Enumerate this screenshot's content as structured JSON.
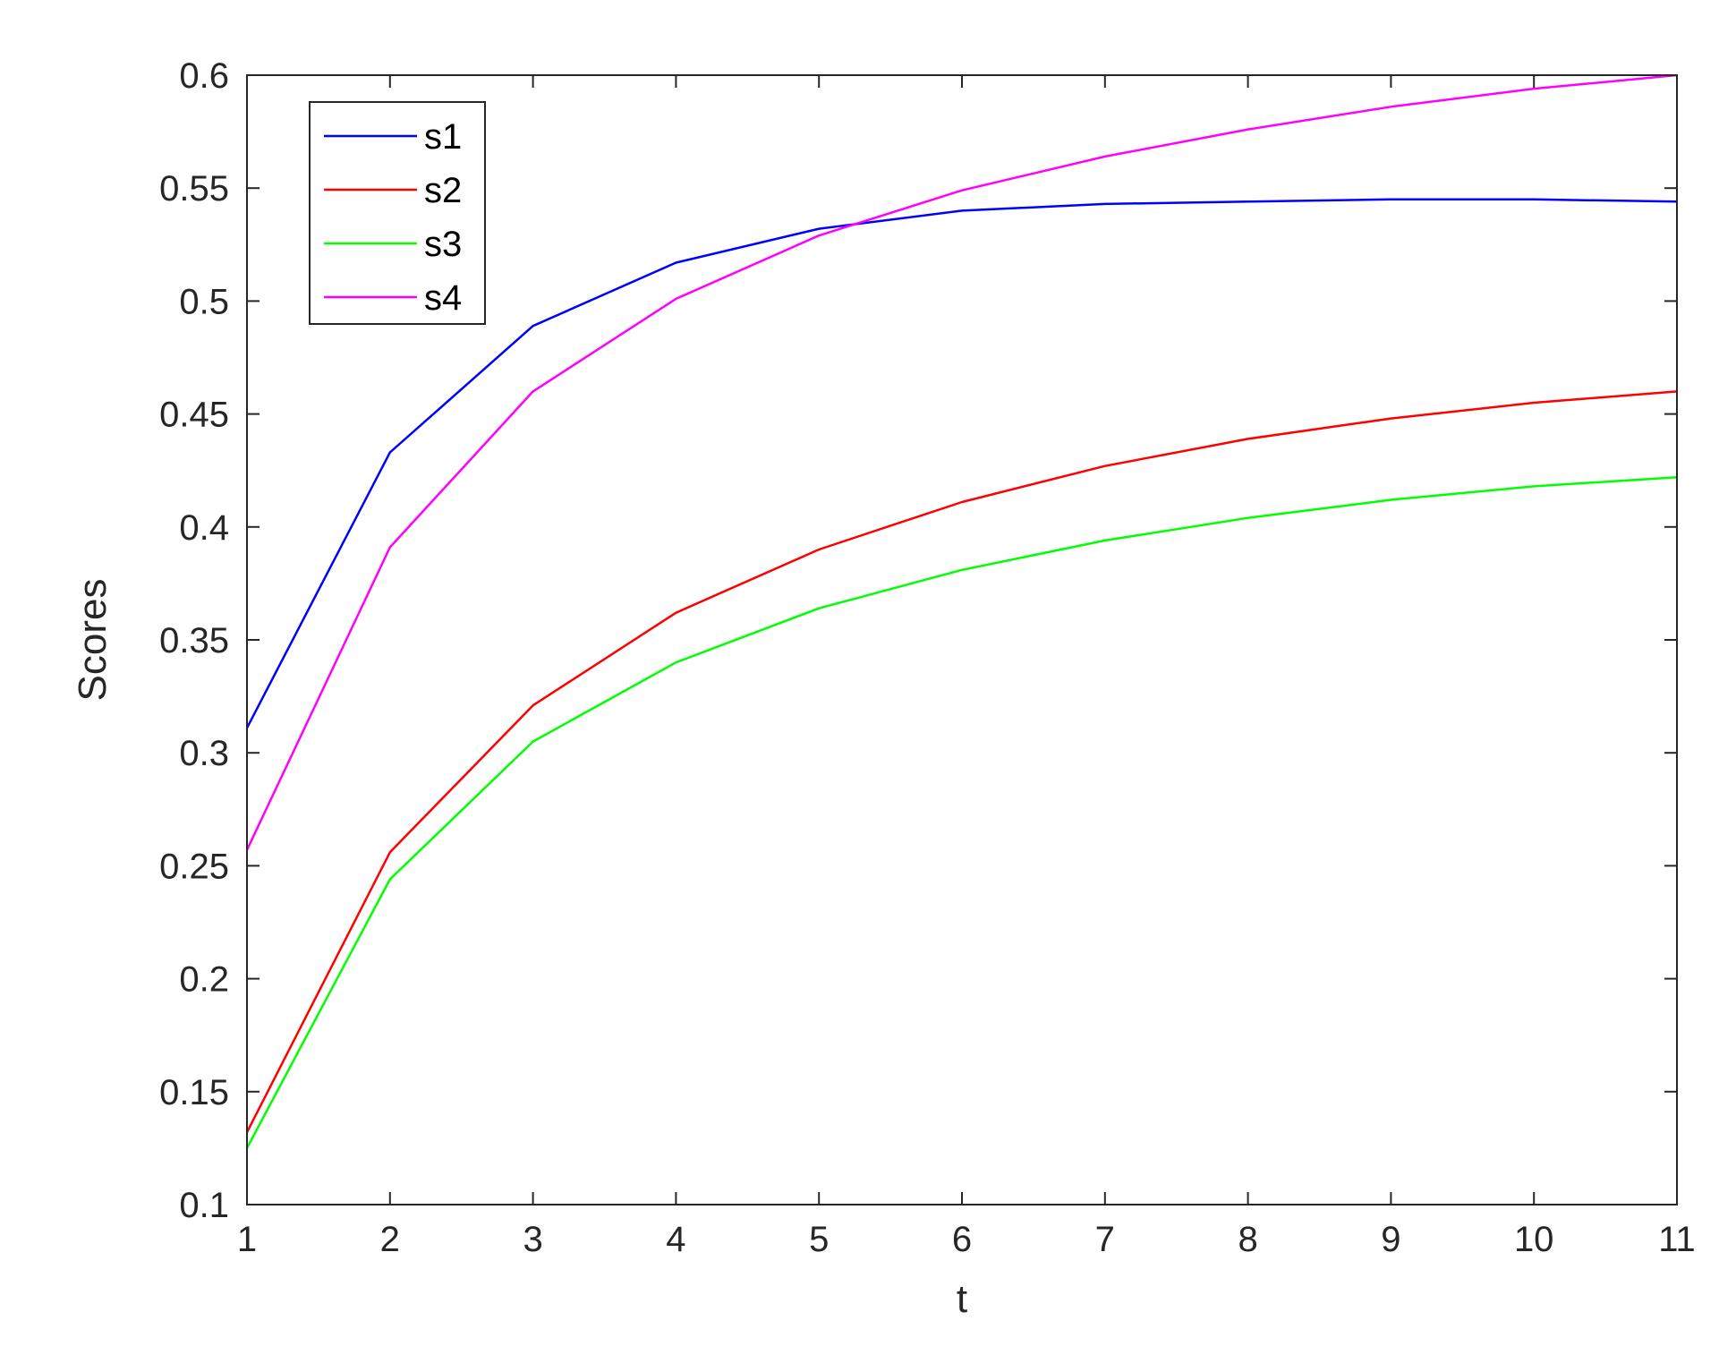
{
  "chart_data": {
    "type": "line",
    "title": "",
    "xlabel": "t",
    "ylabel": "Scores",
    "xlim": [
      1,
      11
    ],
    "ylim": [
      0.1,
      0.6
    ],
    "xticks": [
      1,
      2,
      3,
      4,
      5,
      6,
      7,
      8,
      9,
      10,
      11
    ],
    "yticks": [
      0.1,
      0.15,
      0.2,
      0.25,
      0.3,
      0.35,
      0.4,
      0.45,
      0.5,
      0.55,
      0.6
    ],
    "xtick_labels": [
      "1",
      "2",
      "3",
      "4",
      "5",
      "6",
      "7",
      "8",
      "9",
      "10",
      "11"
    ],
    "ytick_labels": [
      "0.1",
      "0.15",
      "0.2",
      "0.25",
      "0.3",
      "0.35",
      "0.4",
      "0.45",
      "0.5",
      "0.55",
      "0.6"
    ],
    "grid": false,
    "legend_position": "top-left",
    "x": [
      1,
      2,
      3,
      4,
      5,
      6,
      7,
      8,
      9,
      10,
      11
    ],
    "series": [
      {
        "name": "s1",
        "color": "#0000ff",
        "values": [
          0.311,
          0.433,
          0.489,
          0.517,
          0.532,
          0.54,
          0.543,
          0.544,
          0.545,
          0.545,
          0.544
        ]
      },
      {
        "name": "s2",
        "color": "#ff0000",
        "values": [
          0.132,
          0.256,
          0.321,
          0.362,
          0.39,
          0.411,
          0.427,
          0.439,
          0.448,
          0.455,
          0.46
        ]
      },
      {
        "name": "s3",
        "color": "#00ff00",
        "values": [
          0.125,
          0.244,
          0.305,
          0.34,
          0.364,
          0.381,
          0.394,
          0.404,
          0.412,
          0.418,
          0.422
        ]
      },
      {
        "name": "s4",
        "color": "#ff00ff",
        "values": [
          0.257,
          0.391,
          0.46,
          0.501,
          0.529,
          0.549,
          0.564,
          0.576,
          0.586,
          0.594,
          0.6
        ]
      }
    ]
  }
}
